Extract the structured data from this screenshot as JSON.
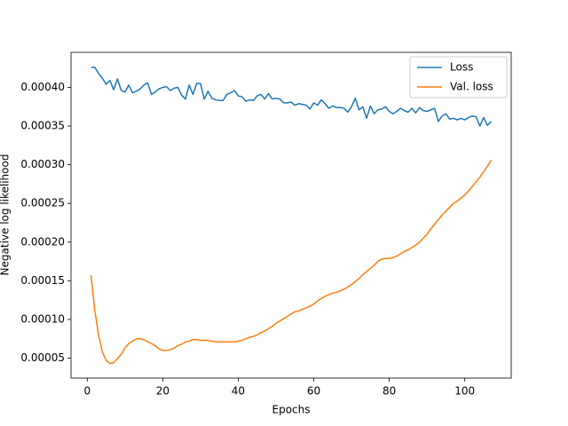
{
  "chart_data": {
    "type": "line",
    "xlabel": "Epochs",
    "ylabel": "Negative log likelihood",
    "x": [
      1,
      2,
      3,
      4,
      5,
      6,
      7,
      8,
      9,
      10,
      11,
      12,
      13,
      14,
      15,
      16,
      17,
      18,
      19,
      20,
      21,
      22,
      23,
      24,
      25,
      26,
      27,
      28,
      29,
      30,
      31,
      32,
      33,
      34,
      35,
      36,
      37,
      38,
      39,
      40,
      41,
      42,
      43,
      44,
      45,
      46,
      47,
      48,
      49,
      50,
      51,
      52,
      53,
      54,
      55,
      56,
      57,
      58,
      59,
      60,
      61,
      62,
      63,
      64,
      65,
      66,
      67,
      68,
      69,
      70,
      71,
      72,
      73,
      74,
      75,
      76,
      77,
      78,
      79,
      80,
      81,
      82,
      83,
      84,
      85,
      86,
      87,
      88,
      89,
      90,
      91,
      92,
      93,
      94,
      95,
      96,
      97,
      98,
      99,
      100,
      101,
      102,
      103,
      104,
      105,
      106,
      107
    ],
    "series": [
      {
        "name": "Loss",
        "color": "#1f77b4",
        "values": [
          0.000426,
          0.000426,
          0.000418,
          0.000412,
          0.000404,
          0.000409,
          0.000397,
          0.000411,
          0.000396,
          0.000394,
          0.000403,
          0.000393,
          0.000395,
          0.000398,
          0.000403,
          0.000406,
          0.000391,
          0.000394,
          0.000398,
          0.0004,
          0.000401,
          0.000396,
          0.000399,
          0.0004,
          0.00039,
          0.000385,
          0.000403,
          0.000391,
          0.000405,
          0.000405,
          0.000385,
          0.000395,
          0.000386,
          0.000384,
          0.000383,
          0.000383,
          0.000391,
          0.000393,
          0.000396,
          0.000389,
          0.000388,
          0.000382,
          0.000384,
          0.000383,
          0.000389,
          0.000391,
          0.000385,
          0.000392,
          0.000385,
          0.000386,
          0.000385,
          0.00038,
          0.00038,
          0.000381,
          0.000377,
          0.000379,
          0.000378,
          0.000377,
          0.000372,
          0.00038,
          0.000377,
          0.000384,
          0.000379,
          0.000373,
          0.000376,
          0.000374,
          0.000374,
          0.000373,
          0.000368,
          0.000375,
          0.000386,
          0.000371,
          0.000375,
          0.00036,
          0.000376,
          0.000366,
          0.000371,
          0.000372,
          0.000375,
          0.000369,
          0.000366,
          0.000369,
          0.000373,
          0.00037,
          0.000368,
          0.000373,
          0.000367,
          0.000374,
          0.00037,
          0.000369,
          0.000371,
          0.000373,
          0.000356,
          0.000363,
          0.000366,
          0.000359,
          0.00036,
          0.000358,
          0.00036,
          0.000358,
          0.000361,
          0.000363,
          0.000362,
          0.00035,
          0.000361,
          0.000351,
          0.000356
        ]
      },
      {
        "name": "Val. loss",
        "color": "#ff7f0e",
        "values": [
          0.000157,
          0.000112,
          8e-05,
          5.8e-05,
          4.7e-05,
          4.3e-05,
          4.4e-05,
          4.9e-05,
          5.5e-05,
          6.3e-05,
          6.9e-05,
          7.2e-05,
          7.5e-05,
          7.5e-05,
          7.4e-05,
          7.1e-05,
          6.9e-05,
          6.6e-05,
          6.2e-05,
          6e-05,
          6e-05,
          6.1e-05,
          6.3e-05,
          6.6e-05,
          6.8e-05,
          7.1e-05,
          7.2e-05,
          7.4e-05,
          7.4e-05,
          7.3e-05,
          7.3e-05,
          7.3e-05,
          7.2e-05,
          7.1e-05,
          7.1e-05,
          7.1e-05,
          7.1e-05,
          7.1e-05,
          7.1e-05,
          7.2e-05,
          7.3e-05,
          7.5e-05,
          7.7e-05,
          7.8e-05,
          8e-05,
          8.3e-05,
          8.5e-05,
          8.8e-05,
          9.1e-05,
          9.5e-05,
          9.8e-05,
          0.000101,
          0.000104,
          0.000107,
          0.00011,
          0.000111,
          0.000113,
          0.000115,
          0.000117,
          0.00012,
          0.000124,
          0.000127,
          0.00013,
          0.000132,
          0.000134,
          0.000135,
          0.000137,
          0.000139,
          0.000142,
          0.000145,
          0.000149,
          0.000153,
          0.000158,
          0.000162,
          0.000166,
          0.00017,
          0.000175,
          0.000178,
          0.000179,
          0.000179,
          0.00018,
          0.000182,
          0.000185,
          0.000188,
          0.00019,
          0.000193,
          0.000196,
          0.0002,
          0.000205,
          0.00021,
          0.000217,
          0.000223,
          0.000229,
          0.000235,
          0.00024,
          0.000245,
          0.00025,
          0.000253,
          0.000257,
          0.000261,
          0.000266,
          0.000272,
          0.000278,
          0.000284,
          0.000291,
          0.000298,
          0.000306
        ]
      }
    ],
    "xlim": [
      -4.3,
      112.3
    ],
    "xticks": [
      0,
      20,
      40,
      60,
      80,
      100
    ],
    "ylim": [
      2.42e-05,
      0.0004453
    ],
    "yticks": [
      5e-05,
      {
        "value": 0.0001,
        "label": "0.00010"
      },
      0.00015,
      {
        "value": 0.0002,
        "label": "0.00020"
      },
      0.00025,
      {
        "value": 0.0003,
        "label": "0.00030"
      },
      0.00035,
      {
        "value": 0.0004,
        "label": "0.00040"
      }
    ],
    "legend": "upper right",
    "grid": false
  }
}
